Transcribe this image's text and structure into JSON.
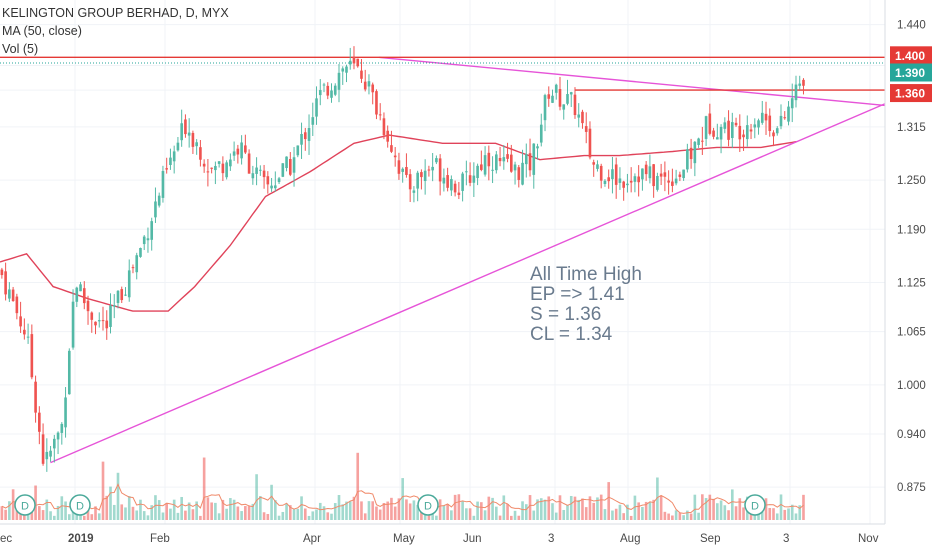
{
  "legend": {
    "title": "KELINGTON GROUP BERHAD, D, MYX",
    "ma": "MA (50, close)",
    "vol": "Vol (5)"
  },
  "annotation": {
    "line1": "All Time High",
    "line2": "EP => 1.41",
    "line3": "S = 1.36",
    "line4": "CL = 1.34"
  },
  "colors": {
    "up": "#53b9a6",
    "down": "#ef5350",
    "ma": "#e0435a",
    "trend": "#e654d8",
    "resistance": "#e53935",
    "dotted": "#26a69a"
  },
  "chart_data": {
    "type": "candlestick",
    "y_ticks": [
      "1.440",
      "1.400",
      "1.390",
      "1.360",
      "1.315",
      "1.250",
      "1.190",
      "1.125",
      "1.065",
      "1.000",
      "0.940",
      "0.875"
    ],
    "x_ticks": [
      "ec",
      "2019",
      "Feb",
      "Apr",
      "May",
      "Jun",
      "3",
      "Aug",
      "Sep",
      "3",
      "Nov"
    ],
    "price_labels": [
      {
        "value": "1.400",
        "color": "#e53935"
      },
      {
        "value": "1.390",
        "color": "#26a69a"
      },
      {
        "value": "1.360",
        "color": "#e53935"
      }
    ],
    "dividend_markers": [
      "D",
      "D",
      "D",
      "D"
    ],
    "ylim": [
      0.83,
      1.47
    ],
    "horizontal_levels": [
      1.4,
      1.36
    ],
    "trendlines": [
      {
        "name": "support",
        "from": [
          0.057,
          0.905
        ],
        "to": [
          0.952,
          1.325
        ]
      },
      {
        "name": "resistance",
        "from": [
          0.428,
          1.4
        ],
        "to": [
          0.952,
          1.351
        ]
      }
    ],
    "close_anchors": [
      [
        0.0,
        1.14
      ],
      [
        0.03,
        1.06
      ],
      [
        0.05,
        0.9
      ],
      [
        0.07,
        0.95
      ],
      [
        0.085,
        1.13
      ],
      [
        0.1,
        1.09
      ],
      [
        0.12,
        1.07
      ],
      [
        0.14,
        1.12
      ],
      [
        0.16,
        1.17
      ],
      [
        0.185,
        1.25
      ],
      [
        0.21,
        1.32
      ],
      [
        0.24,
        1.26
      ],
      [
        0.27,
        1.29
      ],
      [
        0.3,
        1.24
      ],
      [
        0.33,
        1.27
      ],
      [
        0.36,
        1.35
      ],
      [
        0.39,
        1.39
      ],
      [
        0.41,
        1.38
      ],
      [
        0.44,
        1.3
      ],
      [
        0.46,
        1.24
      ],
      [
        0.49,
        1.27
      ],
      [
        0.52,
        1.24
      ],
      [
        0.55,
        1.28
      ],
      [
        0.58,
        1.26
      ],
      [
        0.6,
        1.27
      ],
      [
        0.62,
        1.36
      ],
      [
        0.65,
        1.34
      ],
      [
        0.67,
        1.27
      ],
      [
        0.7,
        1.25
      ],
      [
        0.72,
        1.26
      ],
      [
        0.745,
        1.25
      ],
      [
        0.77,
        1.26
      ],
      [
        0.8,
        1.32
      ],
      [
        0.83,
        1.31
      ],
      [
        0.86,
        1.33
      ],
      [
        0.88,
        1.31
      ],
      [
        0.9,
        1.36
      ],
      [
        0.91,
        1.38
      ]
    ],
    "ma_anchors": [
      [
        0.0,
        1.15
      ],
      [
        0.03,
        1.16
      ],
      [
        0.06,
        1.12
      ],
      [
        0.1,
        1.105
      ],
      [
        0.15,
        1.09
      ],
      [
        0.19,
        1.09
      ],
      [
        0.22,
        1.12
      ],
      [
        0.26,
        1.17
      ],
      [
        0.3,
        1.23
      ],
      [
        0.35,
        1.26
      ],
      [
        0.4,
        1.295
      ],
      [
        0.44,
        1.305
      ],
      [
        0.5,
        1.295
      ],
      [
        0.56,
        1.295
      ],
      [
        0.61,
        1.275
      ],
      [
        0.66,
        1.28
      ],
      [
        0.7,
        1.28
      ],
      [
        0.76,
        1.285
      ],
      [
        0.81,
        1.29
      ],
      [
        0.86,
        1.29
      ],
      [
        0.9,
        1.297
      ]
    ]
  }
}
